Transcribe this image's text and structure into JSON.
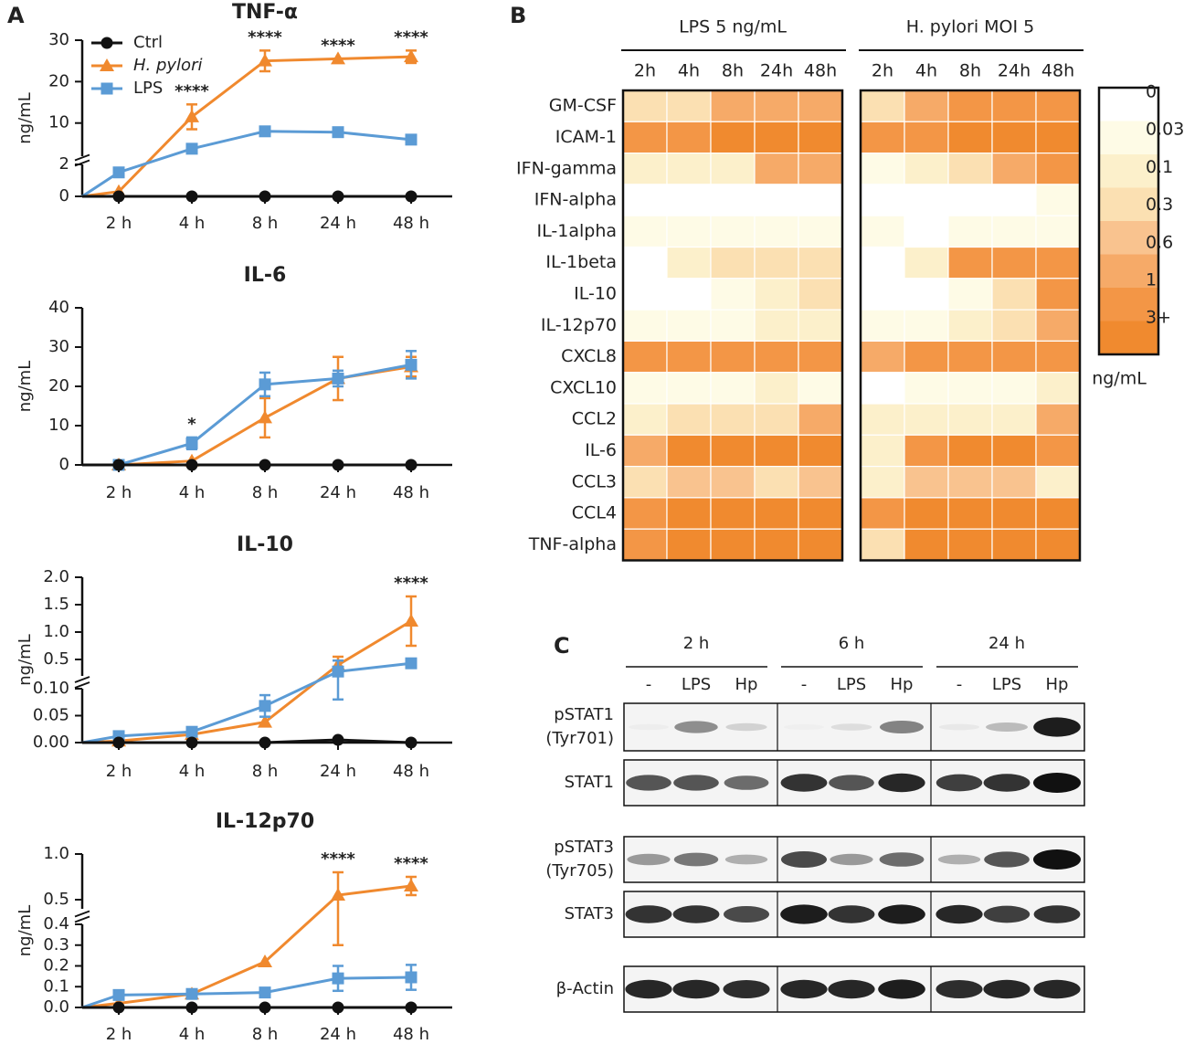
{
  "panel_labels": [
    "A",
    "B",
    "C"
  ],
  "chart_data": [
    {
      "type": "line",
      "title": "TNF-α",
      "ylabel": "ng/mL",
      "legend": "upper left",
      "categories": [
        null,
        "2 h",
        "4 h",
        "8 h",
        "24 h",
        "48 h"
      ],
      "y_segments": [
        {
          "ylim": [
            0,
            2
          ],
          "yticks": [
            0,
            2
          ]
        },
        {
          "ylim": [
            2,
            30
          ],
          "yticks": [
            10,
            20,
            30
          ]
        }
      ],
      "series": [
        {
          "name": "Ctrl",
          "color": "#111111",
          "marker": "circle",
          "values": [
            0,
            0,
            0,
            0,
            0,
            0
          ]
        },
        {
          "name": "H. pylori",
          "italic": true,
          "color": "#f0892e",
          "marker": "triangle",
          "values": [
            0,
            0.3,
            11.5,
            25,
            25.5,
            26
          ],
          "errors": [
            null,
            null,
            3,
            2.5,
            null,
            1.5
          ]
        },
        {
          "name": "LPS",
          "color": "#5b9bd5",
          "marker": "square",
          "values": [
            0,
            1.5,
            3.8,
            8,
            7.8,
            6
          ],
          "errors": [
            null,
            null,
            null,
            null,
            null,
            null
          ]
        }
      ],
      "annotations": [
        {
          "text": "****",
          "at": "4 h"
        },
        {
          "text": "****",
          "at": "8 h"
        },
        {
          "text": "****",
          "at": "24 h"
        },
        {
          "text": "****",
          "at": "48 h"
        }
      ]
    },
    {
      "type": "line",
      "title": "IL-6",
      "ylabel": "ng/mL",
      "categories": [
        null,
        "2 h",
        "4 h",
        "8 h",
        "24 h",
        "48 h"
      ],
      "y_segments": [
        {
          "ylim": [
            0,
            40
          ],
          "yticks": [
            0,
            10,
            20,
            30,
            40
          ]
        }
      ],
      "series": [
        {
          "color": "#111111",
          "marker": "circle",
          "values": [
            0,
            0,
            0,
            0,
            0,
            0
          ]
        },
        {
          "color": "#f0892e",
          "marker": "triangle",
          "values": [
            0,
            0,
            1,
            12,
            22,
            25
          ],
          "errors": [
            null,
            null,
            null,
            5,
            5.5,
            2.5
          ]
        },
        {
          "color": "#5b9bd5",
          "marker": "square",
          "values": [
            0,
            0,
            5.5,
            20.5,
            22,
            25.5
          ],
          "errors": [
            null,
            null,
            1.5,
            3,
            2,
            3.5
          ]
        }
      ],
      "annotations": [
        {
          "text": "*",
          "at": "4 h"
        }
      ]
    },
    {
      "type": "line",
      "title": "IL-10",
      "ylabel": "ng/mL",
      "categories": [
        null,
        "2 h",
        "4 h",
        "8 h",
        "24 h",
        "48 h"
      ],
      "y_segments": [
        {
          "ylim": [
            0,
            0.1
          ],
          "yticks": [
            {
              "value": 0,
              "label": "0.00"
            },
            0.05,
            {
              "value": 0.1,
              "label": "0.10"
            }
          ]
        },
        {
          "ylim": [
            0.2,
            2
          ],
          "yticks": [
            0.5,
            {
              "value": 1,
              "label": "1.0"
            },
            1.5,
            {
              "value": 2,
              "label": "2.0"
            }
          ]
        }
      ],
      "series": [
        {
          "color": "#111111",
          "marker": "circle",
          "values": [
            0,
            0,
            0,
            0,
            0.005,
            0
          ]
        },
        {
          "color": "#f0892e",
          "marker": "triangle",
          "values": [
            0,
            0.003,
            0.015,
            0.038,
            0.4,
            1.2
          ],
          "errors": [
            null,
            null,
            null,
            null,
            0.15,
            0.45
          ]
        },
        {
          "color": "#5b9bd5",
          "marker": "square",
          "values": [
            0,
            0.012,
            0.02,
            0.068,
            0.28,
            0.43
          ],
          "errors": [
            null,
            null,
            null,
            0.02,
            0.2,
            null
          ]
        }
      ],
      "annotations": [
        {
          "text": "****",
          "at": "48 h"
        }
      ]
    },
    {
      "type": "line",
      "title": "IL-12p70",
      "ylabel": "ng/mL",
      "categories": [
        null,
        "2 h",
        "4 h",
        "8 h",
        "24 h",
        "48 h"
      ],
      "y_segments": [
        {
          "ylim": [
            0,
            0.4
          ],
          "yticks": [
            {
              "value": 0,
              "label": "0.0"
            },
            0.1,
            0.2,
            0.3,
            0.4
          ]
        },
        {
          "ylim": [
            0.4,
            1
          ],
          "yticks": [
            0.5,
            {
              "value": 1,
              "label": "1.0"
            }
          ]
        }
      ],
      "series": [
        {
          "color": "#111111",
          "marker": "circle",
          "values": [
            0,
            0,
            0,
            0,
            0,
            0
          ]
        },
        {
          "color": "#f0892e",
          "marker": "triangle",
          "values": [
            0,
            0.02,
            0.065,
            0.22,
            0.55,
            0.65
          ],
          "errors": [
            null,
            null,
            null,
            null,
            0.25,
            0.1
          ]
        },
        {
          "color": "#5b9bd5",
          "marker": "square",
          "values": [
            0,
            0.06,
            0.065,
            0.072,
            0.14,
            0.145
          ],
          "errors": [
            null,
            null,
            null,
            null,
            0.06,
            0.06
          ]
        }
      ],
      "annotations": [
        {
          "text": "****",
          "at": "24 h"
        },
        {
          "text": "****",
          "at": "48 h"
        }
      ]
    },
    {
      "type": "heatmap",
      "columns": [
        "2h",
        "4h",
        "8h",
        "24h",
        "48h"
      ],
      "rows": [
        "GM-CSF",
        "ICAM-1",
        "IFN-gamma",
        "IFN-alpha",
        "IL-1alpha",
        "IL-1beta",
        "IL-10",
        "IL-12p70",
        "CXCL8",
        "CXCL10",
        "CCL2",
        "IL-6",
        "CCL3",
        "CCL4",
        "TNF-alpha"
      ],
      "groups": [
        {
          "title": "LPS 5 ng/mL",
          "values": [
            [
              0.2,
              0.2,
              0.8,
              0.8,
              0.8
            ],
            [
              2,
              2,
              5,
              5,
              5
            ],
            [
              0.05,
              0.05,
              0.05,
              0.8,
              0.8
            ],
            [
              0,
              0,
              0,
              0,
              0
            ],
            [
              0.02,
              0.02,
              0.02,
              0.02,
              0.02
            ],
            [
              0,
              0.05,
              0.2,
              0.2,
              0.2
            ],
            [
              0,
              0,
              0.02,
              0.05,
              0.2
            ],
            [
              0.02,
              0.02,
              0.02,
              0.05,
              0.05
            ],
            [
              2,
              2,
              2,
              2,
              2
            ],
            [
              0.02,
              0.02,
              0.02,
              0.05,
              0.02
            ],
            [
              0.05,
              0.2,
              0.2,
              0.2,
              0.8
            ],
            [
              0.8,
              5,
              5,
              5,
              5
            ],
            [
              0.2,
              0.4,
              0.4,
              0.2,
              0.4
            ],
            [
              2,
              5,
              5,
              5,
              5
            ],
            [
              2,
              5,
              5,
              5,
              5
            ]
          ]
        },
        {
          "title": "H. pylori MOI 5",
          "values": [
            [
              0.2,
              0.8,
              2,
              2,
              2
            ],
            [
              2,
              2,
              5,
              5,
              5
            ],
            [
              0.02,
              0.05,
              0.2,
              0.8,
              2
            ],
            [
              0,
              0,
              0,
              0,
              0.02
            ],
            [
              0.02,
              0,
              0.02,
              0.02,
              0.02
            ],
            [
              0,
              0.05,
              2,
              2,
              2
            ],
            [
              0,
              0,
              0.02,
              0.2,
              2
            ],
            [
              0.02,
              0.02,
              0.05,
              0.2,
              0.8
            ],
            [
              0.8,
              2,
              2,
              2,
              2
            ],
            [
              0,
              0.02,
              0.02,
              0.02,
              0.05
            ],
            [
              0.05,
              0.05,
              0.05,
              0.05,
              0.8
            ],
            [
              0.05,
              2,
              5,
              5,
              2
            ],
            [
              0.05,
              0.4,
              0.4,
              0.4,
              0.05
            ],
            [
              2,
              5,
              5,
              5,
              5
            ],
            [
              0.2,
              5,
              5,
              5,
              5
            ]
          ]
        }
      ],
      "colorbar": {
        "ticks": [
          0,
          0.03,
          0.1,
          0.3,
          0.6,
          1,
          {
            "value": 3,
            "label": "3+"
          }
        ],
        "colors": [
          "#ffffff",
          "#fefbe6",
          "#fcf0cb",
          "#fbe0b2",
          "#f9c38f",
          "#f6aa68",
          "#f39646",
          "#f08a2f"
        ],
        "label": "ng/mL"
      }
    }
  ],
  "blot": {
    "timepoints": [
      "2 h",
      "6 h",
      "24 h"
    ],
    "lanes": [
      "-",
      "LPS",
      "Hp",
      "-",
      "LPS",
      "Hp",
      "-",
      "LPS",
      "Hp"
    ],
    "rows": [
      {
        "label": [
          "pSTAT1",
          "(Tyr701)"
        ]
      },
      {
        "label": [
          "STAT1"
        ]
      },
      {
        "label": [
          "pSTAT3",
          "(Tyr705)"
        ]
      },
      {
        "label": [
          "STAT3"
        ]
      },
      {
        "label": [
          "β-Actin"
        ]
      }
    ]
  }
}
